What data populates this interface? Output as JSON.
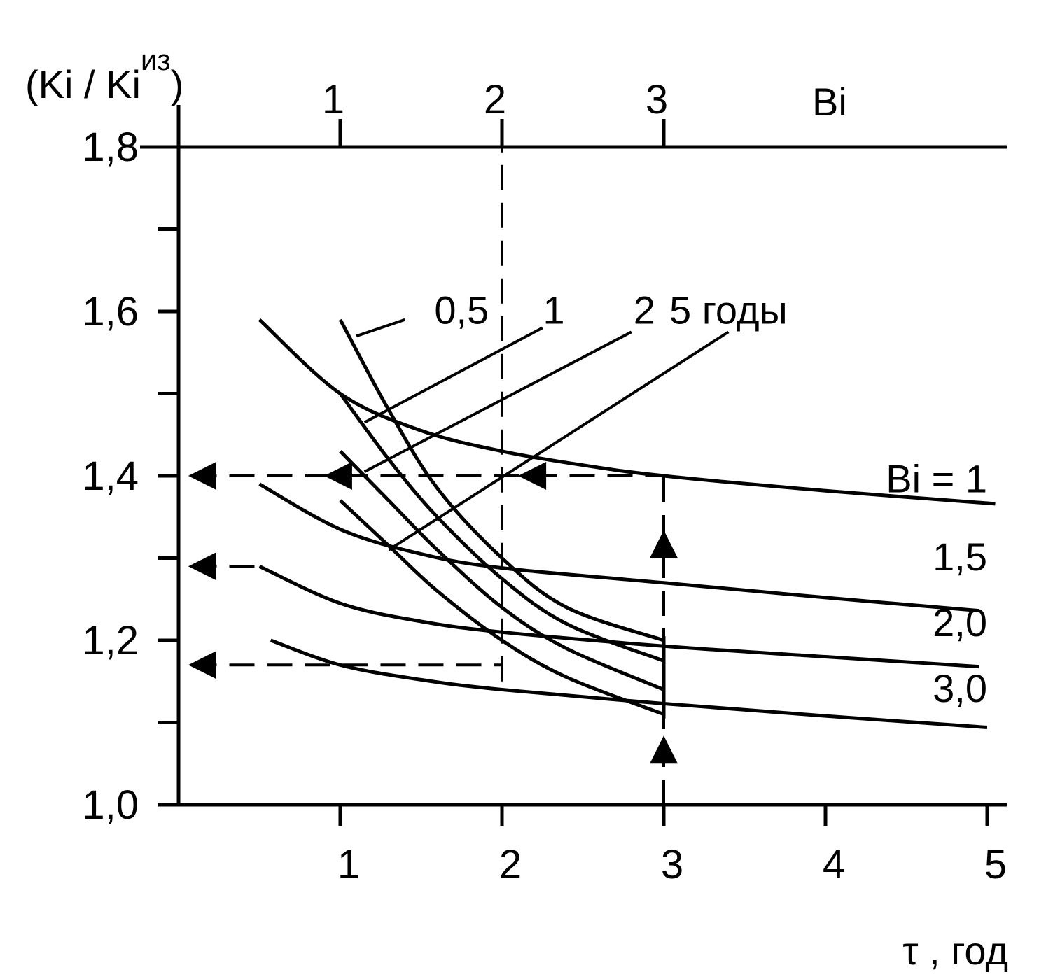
{
  "chart_data": {
    "type": "line",
    "title": "",
    "ylabel": "(Ki / Ki",
    "ylabel_sup": "из",
    "ylabel_close": ")",
    "xlabel": "τ , год",
    "top_axis_label": "Bi",
    "xlim": [
      0,
      5
    ],
    "ylim": [
      1.0,
      1.8
    ],
    "x_ticks": [
      "1",
      "2",
      "3",
      "4",
      "5"
    ],
    "y_ticks": [
      "1,0",
      "1,2",
      "1,4",
      "1,6",
      "1,8"
    ],
    "top_ticks": [
      "1",
      "2",
      "3"
    ],
    "bi_series": [
      {
        "name": "Bi = 1",
        "label": "Bi = 1",
        "points": [
          [
            0.5,
            1.59
          ],
          [
            1.0,
            1.5
          ],
          [
            1.5,
            1.455
          ],
          [
            2.0,
            1.43
          ],
          [
            2.5,
            1.413
          ],
          [
            3.0,
            1.4
          ],
          [
            4.0,
            1.382
          ],
          [
            5.05,
            1.366
          ]
        ]
      },
      {
        "name": "1,5",
        "label": "1,5",
        "points": [
          [
            0.5,
            1.39
          ],
          [
            1.0,
            1.335
          ],
          [
            1.5,
            1.305
          ],
          [
            2.0,
            1.288
          ],
          [
            3.0,
            1.27
          ],
          [
            4.0,
            1.252
          ],
          [
            4.95,
            1.236
          ]
        ]
      },
      {
        "name": "2,0",
        "label": "2,0",
        "points": [
          [
            0.5,
            1.29
          ],
          [
            1.0,
            1.245
          ],
          [
            1.5,
            1.223
          ],
          [
            2.0,
            1.21
          ],
          [
            3.0,
            1.193
          ],
          [
            4.0,
            1.18
          ],
          [
            4.95,
            1.168
          ]
        ]
      },
      {
        "name": "3,0",
        "label": "3,0",
        "points": [
          [
            0.57,
            1.2
          ],
          [
            1.0,
            1.17
          ],
          [
            1.5,
            1.152
          ],
          [
            2.0,
            1.14
          ],
          [
            3.0,
            1.123
          ],
          [
            4.0,
            1.108
          ],
          [
            5.0,
            1.094
          ]
        ]
      }
    ],
    "time_series": [
      {
        "name": "0,5",
        "label": "0,5",
        "points": [
          [
            1.0,
            1.59
          ],
          [
            1.3,
            1.48
          ],
          [
            1.6,
            1.385
          ],
          [
            2.0,
            1.3
          ],
          [
            2.4,
            1.24
          ],
          [
            3.0,
            1.2
          ]
        ]
      },
      {
        "name": "1",
        "label": "1",
        "points": [
          [
            1.0,
            1.5
          ],
          [
            1.3,
            1.42
          ],
          [
            1.6,
            1.35
          ],
          [
            2.0,
            1.275
          ],
          [
            2.4,
            1.22
          ],
          [
            3.0,
            1.175
          ]
        ]
      },
      {
        "name": "2",
        "label": "2",
        "points": [
          [
            1.0,
            1.43
          ],
          [
            1.3,
            1.37
          ],
          [
            1.6,
            1.31
          ],
          [
            2.0,
            1.24
          ],
          [
            2.4,
            1.19
          ],
          [
            3.0,
            1.14
          ]
        ]
      },
      {
        "name": "5 годы",
        "label": "5 годы",
        "points": [
          [
            1.0,
            1.37
          ],
          [
            1.3,
            1.315
          ],
          [
            1.6,
            1.26
          ],
          [
            2.0,
            1.2
          ],
          [
            2.4,
            1.155
          ],
          [
            3.0,
            1.11
          ]
        ]
      }
    ],
    "leaders": [
      {
        "from": [
          1.15,
          1.465
        ],
        "to": [
          2.25,
          1.58
        ]
      },
      {
        "from": [
          1.15,
          1.405
        ],
        "to": [
          2.8,
          1.575
        ]
      },
      {
        "from": [
          1.3,
          1.31
        ],
        "to": [
          3.4,
          1.575
        ]
      }
    ],
    "leader_05": {
      "from": [
        1.1,
        1.57
      ],
      "to": [
        1.4,
        1.59
      ]
    },
    "guides": {
      "h": [
        {
          "y": 1.4,
          "x1": 0.08,
          "x2": 3.0
        },
        {
          "y": 1.29,
          "x1": 0.08,
          "x2": 0.5
        },
        {
          "y": 1.17,
          "x1": 0.08,
          "x2": 2.0
        }
      ],
      "v": [
        {
          "x": 2.0,
          "y1": 1.15,
          "y2": 1.8
        },
        {
          "x": 3.0,
          "y1": 1.0,
          "y2": 1.4
        }
      ]
    },
    "arrows": [
      {
        "x": 0.06,
        "y": 1.4,
        "dir": "left"
      },
      {
        "x": 0.9,
        "y": 1.4,
        "dir": "left"
      },
      {
        "x": 2.1,
        "y": 1.4,
        "dir": "left"
      },
      {
        "x": 0.06,
        "y": 1.29,
        "dir": "left"
      },
      {
        "x": 0.06,
        "y": 1.17,
        "dir": "left"
      },
      {
        "x": 3.0,
        "y": 1.3,
        "dir": "up"
      },
      {
        "x": 3.0,
        "y": 1.05,
        "dir": "up"
      }
    ]
  }
}
